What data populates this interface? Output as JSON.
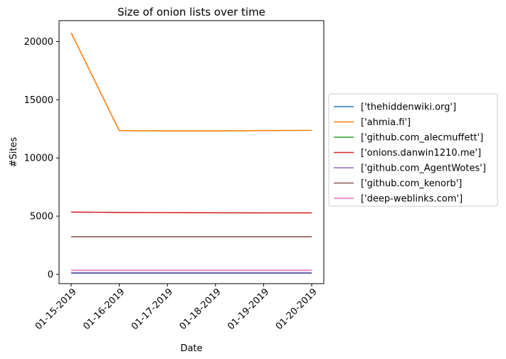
{
  "chart_data": {
    "type": "line",
    "title": "Size of onion lists over time",
    "xlabel": "Date",
    "ylabel": "#Sites",
    "categories": [
      "01-15-2019",
      "01-16-2019",
      "01-17-2019",
      "01-18-2019",
      "01-19-2019",
      "01-20-2019"
    ],
    "ylim": [
      -800,
      21800
    ],
    "yticks": [
      0,
      5000,
      10000,
      15000,
      20000
    ],
    "grid": false,
    "legend_position": "center-right, outside plot",
    "series": [
      {
        "name": "['thehiddenwiki.org']",
        "color": "#1f77b4",
        "values": [
          100,
          100,
          100,
          100,
          100,
          100
        ]
      },
      {
        "name": "['ahmia.fi']",
        "color": "#ff7f0e",
        "values": [
          20750,
          12350,
          12330,
          12330,
          12350,
          12370
        ]
      },
      {
        "name": "['github.com_alecmuffett']",
        "color": "#2ca02c",
        "values": [
          130,
          130,
          130,
          130,
          130,
          130
        ]
      },
      {
        "name": "['onions.danwin1210.me']",
        "color": "#d62728",
        "values": [
          5350,
          5320,
          5300,
          5290,
          5280,
          5280
        ]
      },
      {
        "name": "['github.com_AgentWotes']",
        "color": "#9467bd",
        "values": [
          140,
          140,
          140,
          140,
          140,
          140
        ]
      },
      {
        "name": "['github.com_kenorb']",
        "color": "#8c564b",
        "values": [
          3230,
          3230,
          3230,
          3230,
          3230,
          3230
        ]
      },
      {
        "name": "['deep-weblinks.com']",
        "color": "#e377c2",
        "values": [
          350,
          350,
          350,
          350,
          350,
          350
        ]
      }
    ]
  }
}
